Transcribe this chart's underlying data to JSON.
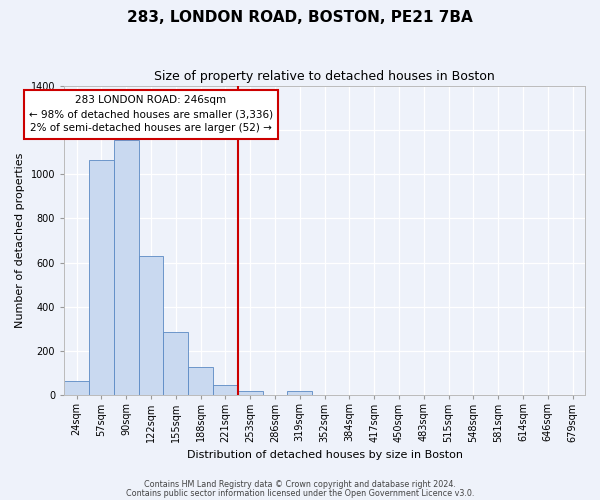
{
  "title": "283, LONDON ROAD, BOSTON, PE21 7BA",
  "subtitle": "Size of property relative to detached houses in Boston",
  "xlabel": "Distribution of detached houses by size in Boston",
  "ylabel": "Number of detached properties",
  "bar_labels": [
    "24sqm",
    "57sqm",
    "90sqm",
    "122sqm",
    "155sqm",
    "188sqm",
    "221sqm",
    "253sqm",
    "286sqm",
    "319sqm",
    "352sqm",
    "384sqm",
    "417sqm",
    "450sqm",
    "483sqm",
    "515sqm",
    "548sqm",
    "581sqm",
    "614sqm",
    "646sqm",
    "679sqm"
  ],
  "bar_heights": [
    65,
    1065,
    1155,
    630,
    285,
    130,
    48,
    20,
    0,
    18,
    0,
    0,
    0,
    0,
    0,
    0,
    0,
    0,
    0,
    0,
    0
  ],
  "bar_color": "#c9d9f0",
  "bar_edge_color": "#5b8ac4",
  "vline_x_index": 7,
  "vline_color": "#cc0000",
  "ylim": [
    0,
    1400
  ],
  "yticks": [
    0,
    200,
    400,
    600,
    800,
    1000,
    1200,
    1400
  ],
  "annotation_title": "283 LONDON ROAD: 246sqm",
  "annotation_line1": "← 98% of detached houses are smaller (3,336)",
  "annotation_line2": "2% of semi-detached houses are larger (52) →",
  "annotation_box_color": "#cc0000",
  "footer_line1": "Contains HM Land Registry data © Crown copyright and database right 2024.",
  "footer_line2": "Contains public sector information licensed under the Open Government Licence v3.0.",
  "bg_color": "#eef2fa",
  "plot_bg_color": "#eef2fa",
  "grid_color": "#ffffff",
  "title_fontsize": 11,
  "subtitle_fontsize": 9,
  "ylabel_fontsize": 8,
  "xlabel_fontsize": 8,
  "tick_fontsize": 7
}
